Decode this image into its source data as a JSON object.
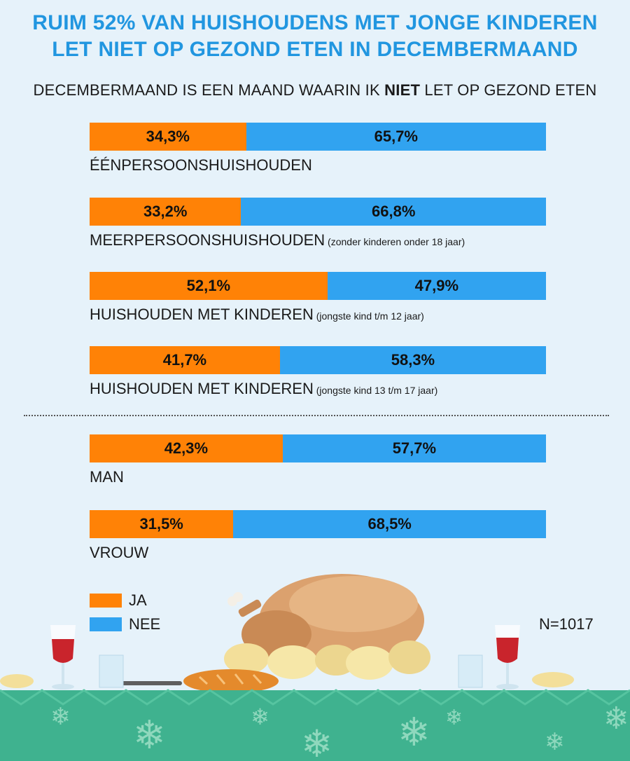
{
  "title": {
    "line1": "RUIM 52% VAN HUISHOUDENS MET JONGE KINDEREN",
    "line2": "LET NIET OP GEZOND ETEN IN DECEMBERMAAND"
  },
  "subtitle": {
    "before": "DECEMBERMAAND IS EEN MAAND WAARIN IK ",
    "bold": "NIET",
    "after": " LET OP GEZOND ETEN"
  },
  "colors": {
    "ja": "#ff8206",
    "nee": "#31a3f0",
    "title": "#2196e0"
  },
  "chart_data": {
    "type": "bar",
    "stacked": true,
    "orientation": "horizontal",
    "categories": [
      {
        "label": "ÉÉNPERSOONSHUISHOUDEN",
        "note": ""
      },
      {
        "label": "MEERPERSOONSHUISHOUDEN",
        "note": "(zonder kinderen onder 18 jaar)"
      },
      {
        "label": "HUISHOUDEN MET KINDEREN",
        "note": "(jongste kind t/m 12 jaar)"
      },
      {
        "label": "HUISHOUDEN MET KINDEREN",
        "note": "(jongste kind 13 t/m 17 jaar)"
      },
      {
        "label": "MAN",
        "note": ""
      },
      {
        "label": "VROUW",
        "note": ""
      }
    ],
    "series": [
      {
        "name": "JA",
        "values": [
          34.3,
          33.2,
          52.1,
          41.7,
          42.3,
          31.5
        ],
        "labels": [
          "34,3%",
          "33,2%",
          "52,1%",
          "41,7%",
          "42,3%",
          "31,5%"
        ]
      },
      {
        "name": "NEE",
        "values": [
          65.7,
          66.8,
          47.9,
          58.3,
          57.7,
          68.5
        ],
        "labels": [
          "65,7%",
          "66,8%",
          "47,9%",
          "58,3%",
          "57,7%",
          "68,5%"
        ]
      }
    ],
    "xlim": [
      0,
      100
    ]
  },
  "legend": [
    {
      "label": "JA",
      "color": "#ff8206"
    },
    {
      "label": "NEE",
      "color": "#31a3f0"
    }
  ],
  "sample_size": "N=1017"
}
